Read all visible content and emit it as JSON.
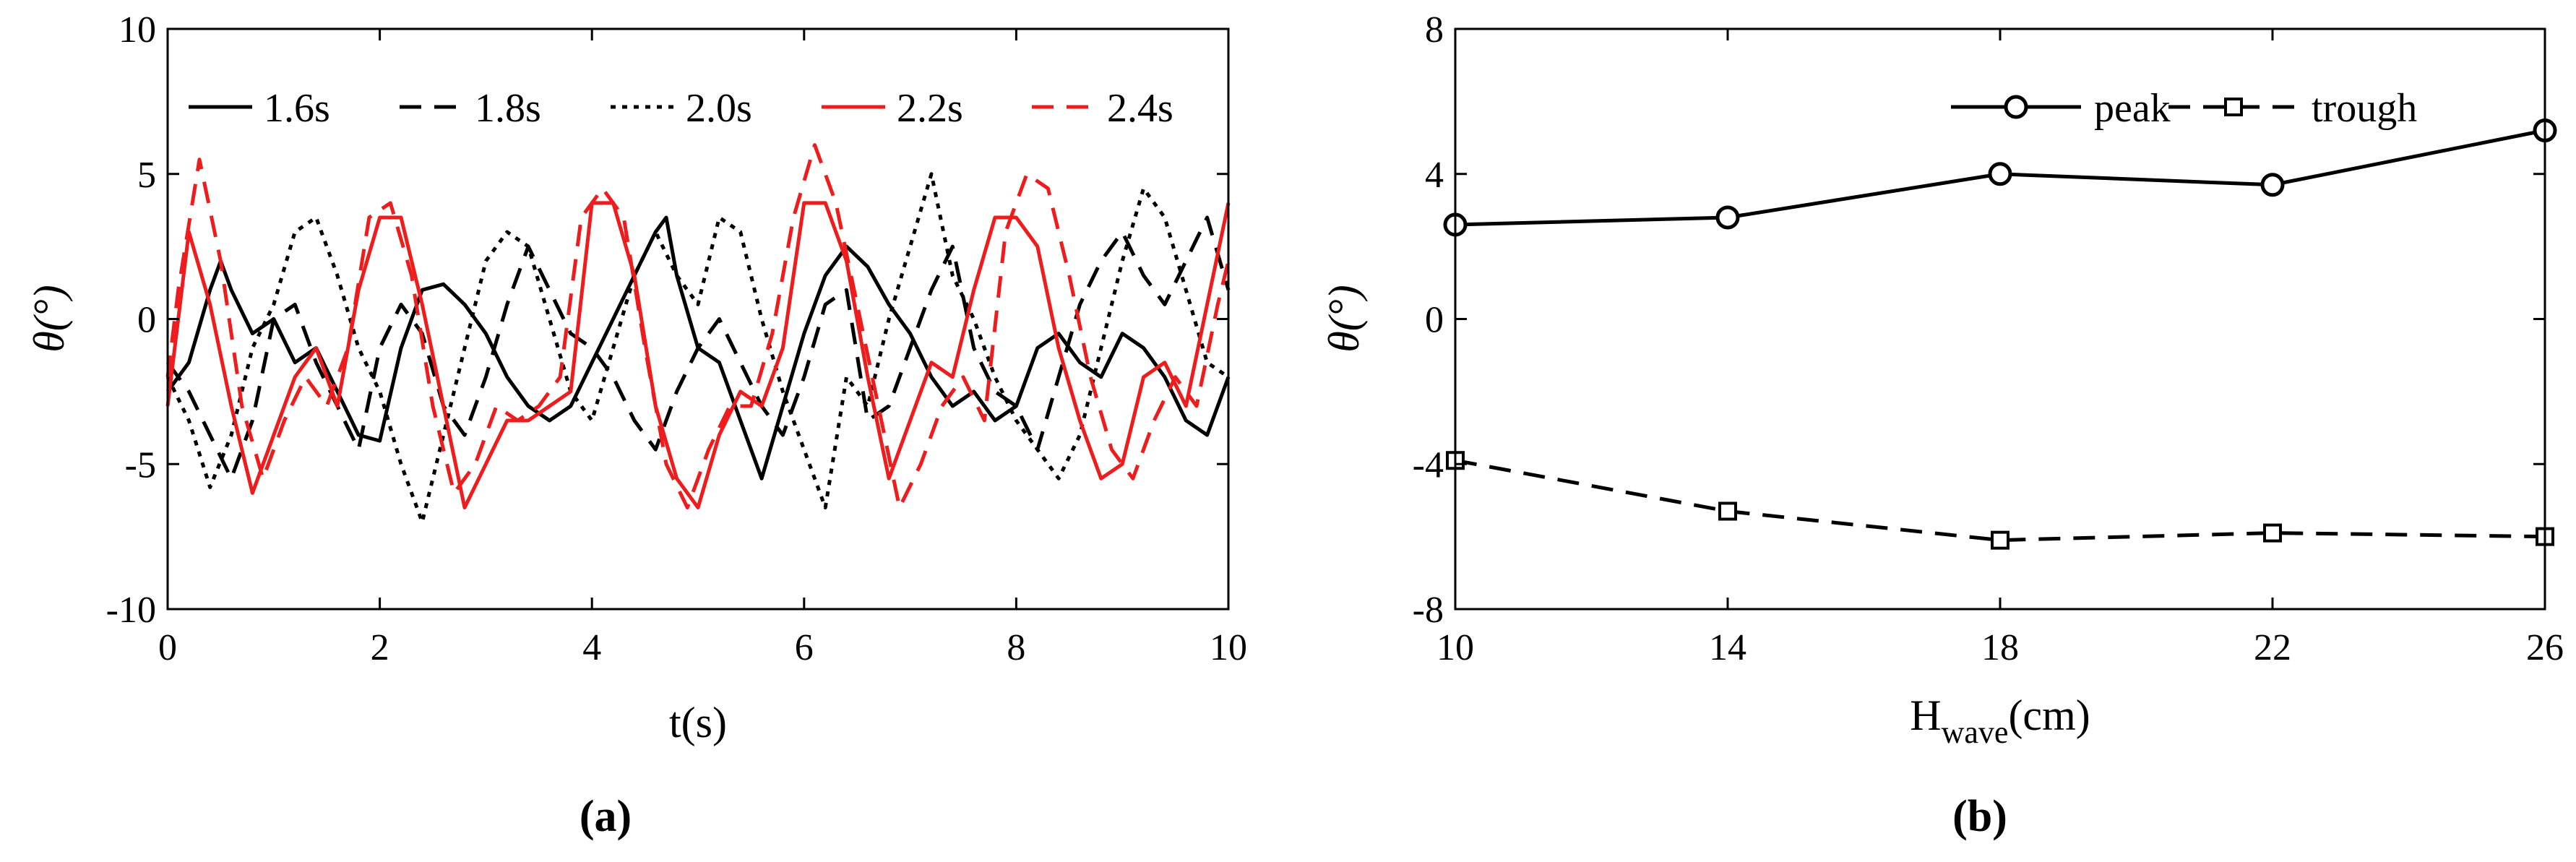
{
  "chart_data": [
    {
      "type": "line",
      "panel_label": "(a)",
      "xlabel": "t(s)",
      "ylabel": "θ(°)",
      "xlim": [
        0,
        10
      ],
      "ylim": [
        -10,
        10
      ],
      "xticks": [
        "0",
        "2",
        "4",
        "6",
        "8",
        "10"
      ],
      "yticks": [
        "-10",
        "-5",
        "0",
        "5",
        "10"
      ],
      "legend_position": "top",
      "grid": false,
      "series": [
        {
          "name": "1.6s",
          "color": "#000000",
          "dash": "solid",
          "x": [
            0,
            0.2,
            0.4,
            0.5,
            0.6,
            0.8,
            1.0,
            1.2,
            1.4,
            1.6,
            1.8,
            2.0,
            2.2,
            2.4,
            2.6,
            2.8,
            3.0,
            3.2,
            3.4,
            3.6,
            3.8,
            4.0,
            4.2,
            4.4,
            4.6,
            4.7,
            4.8,
            5.0,
            5.2,
            5.4,
            5.6,
            5.8,
            6.0,
            6.2,
            6.4,
            6.6,
            6.8,
            7.0,
            7.2,
            7.4,
            7.6,
            7.8,
            8.0,
            8.2,
            8.4,
            8.6,
            8.8,
            9.0,
            9.2,
            9.4,
            9.6,
            9.8,
            10.0
          ],
          "y": [
            -2.5,
            -1.5,
            1.0,
            2.0,
            1.0,
            -0.5,
            0.0,
            -1.5,
            -1.0,
            -2.5,
            -4.0,
            -4.2,
            -1.0,
            1.0,
            1.2,
            0.5,
            -0.5,
            -2.0,
            -3.0,
            -3.5,
            -3.0,
            -1.5,
            0.0,
            1.5,
            3.0,
            3.5,
            1.5,
            -1.0,
            -1.5,
            -3.5,
            -5.5,
            -3.0,
            -0.5,
            1.5,
            2.5,
            1.8,
            0.5,
            -0.5,
            -2.0,
            -3.0,
            -2.5,
            -3.5,
            -3.0,
            -1.0,
            -0.5,
            -1.5,
            -2.0,
            -0.5,
            -1.0,
            -2.0,
            -3.5,
            -4.0,
            -2.0
          ]
        },
        {
          "name": "1.8s",
          "color": "#000000",
          "dash": "dash",
          "x": [
            0,
            0.2,
            0.4,
            0.6,
            0.8,
            1.0,
            1.2,
            1.4,
            1.6,
            1.8,
            2.0,
            2.2,
            2.4,
            2.6,
            2.8,
            3.0,
            3.2,
            3.4,
            3.6,
            3.8,
            4.0,
            4.2,
            4.4,
            4.6,
            4.8,
            5.0,
            5.2,
            5.4,
            5.6,
            5.8,
            6.0,
            6.2,
            6.4,
            6.6,
            6.8,
            7.0,
            7.2,
            7.4,
            7.6,
            7.8,
            8.0,
            8.2,
            8.4,
            8.6,
            8.8,
            9.0,
            9.2,
            9.4,
            9.6,
            9.8,
            10.0
          ],
          "y": [
            -1.5,
            -2.5,
            -4.0,
            -5.5,
            -3.5,
            0.0,
            0.5,
            -1.5,
            -3.0,
            -4.5,
            -1.0,
            0.5,
            -0.5,
            -3.0,
            -4.0,
            -2.0,
            0.5,
            2.5,
            1.0,
            -0.5,
            -1.0,
            -2.0,
            -3.5,
            -4.5,
            -2.5,
            -1.0,
            0.0,
            -1.5,
            -3.0,
            -4.0,
            -2.0,
            0.5,
            1.0,
            -3.5,
            -3.0,
            -1.0,
            1.0,
            2.5,
            -1.0,
            -2.5,
            -3.0,
            -4.5,
            -2.0,
            0.5,
            2.0,
            3.0,
            1.5,
            0.5,
            2.0,
            3.5,
            1.0
          ]
        },
        {
          "name": "2.0s",
          "color": "#000000",
          "dash": "dot",
          "x": [
            0,
            0.2,
            0.4,
            0.6,
            0.8,
            1.0,
            1.2,
            1.4,
            1.6,
            1.8,
            2.0,
            2.2,
            2.4,
            2.6,
            2.8,
            3.0,
            3.2,
            3.4,
            3.6,
            3.8,
            4.0,
            4.2,
            4.4,
            4.6,
            4.8,
            5.0,
            5.2,
            5.4,
            5.6,
            5.8,
            6.0,
            6.2,
            6.4,
            6.6,
            6.8,
            7.0,
            7.2,
            7.4,
            7.6,
            7.8,
            8.0,
            8.2,
            8.4,
            8.6,
            8.8,
            9.0,
            9.2,
            9.4,
            9.6,
            9.8,
            10.0
          ],
          "y": [
            -2.0,
            -3.5,
            -5.8,
            -4.0,
            -1.0,
            0.5,
            3.0,
            3.5,
            1.5,
            -1.0,
            -2.5,
            -5.0,
            -7.0,
            -4.0,
            -1.0,
            2.0,
            3.0,
            2.5,
            0.0,
            -2.5,
            -3.5,
            -1.0,
            1.5,
            3.0,
            1.5,
            0.5,
            3.5,
            3.0,
            0.0,
            -2.5,
            -4.5,
            -6.5,
            -2.0,
            -3.0,
            0.0,
            2.5,
            5.0,
            1.5,
            0.0,
            -2.0,
            -3.5,
            -4.5,
            -5.5,
            -4.0,
            -1.0,
            2.0,
            4.5,
            3.5,
            1.0,
            -1.5,
            -2.0
          ]
        },
        {
          "name": "2.2s",
          "color": "#ee1c1c",
          "dash": "solid",
          "x": [
            0,
            0.2,
            0.4,
            0.6,
            0.8,
            1.0,
            1.2,
            1.4,
            1.6,
            1.8,
            2.0,
            2.2,
            2.4,
            2.6,
            2.8,
            3.0,
            3.2,
            3.4,
            3.6,
            3.8,
            4.0,
            4.2,
            4.4,
            4.6,
            4.8,
            5.0,
            5.2,
            5.4,
            5.6,
            5.8,
            6.0,
            6.2,
            6.4,
            6.6,
            6.8,
            7.0,
            7.2,
            7.4,
            7.6,
            7.8,
            8.0,
            8.2,
            8.4,
            8.6,
            8.8,
            9.0,
            9.2,
            9.4,
            9.6,
            9.8,
            10.0
          ],
          "y": [
            -3.0,
            3.0,
            0.5,
            -3.0,
            -6.0,
            -4.0,
            -2.0,
            -1.0,
            -3.0,
            1.0,
            3.5,
            3.5,
            0.5,
            -3.0,
            -6.5,
            -5.0,
            -3.5,
            -3.5,
            -3.0,
            -2.5,
            4.0,
            4.0,
            1.5,
            -3.0,
            -5.5,
            -6.5,
            -4.0,
            -2.5,
            -3.0,
            -1.0,
            4.0,
            4.0,
            2.0,
            -2.0,
            -5.5,
            -3.5,
            -1.5,
            -2.0,
            1.0,
            3.5,
            3.5,
            2.5,
            -1.0,
            -3.5,
            -5.5,
            -5.0,
            -2.0,
            -1.5,
            -3.0,
            0.5,
            4.0
          ]
        },
        {
          "name": "2.4s",
          "color": "#ee1c1c",
          "dash": "dash",
          "x": [
            0,
            0.1,
            0.3,
            0.5,
            0.7,
            0.9,
            1.1,
            1.3,
            1.5,
            1.7,
            1.9,
            2.1,
            2.3,
            2.5,
            2.7,
            2.9,
            3.1,
            3.3,
            3.5,
            3.7,
            3.9,
            4.1,
            4.3,
            4.5,
            4.7,
            4.9,
            5.1,
            5.3,
            5.5,
            5.7,
            5.9,
            6.1,
            6.3,
            6.5,
            6.7,
            6.9,
            7.1,
            7.3,
            7.5,
            7.7,
            7.9,
            8.1,
            8.3,
            8.5,
            8.7,
            8.9,
            9.1,
            9.3,
            9.5,
            9.7,
            9.9,
            10.0
          ],
          "y": [
            -2.0,
            1.0,
            5.5,
            2.0,
            -3.0,
            -5.5,
            -3.5,
            -2.0,
            -3.0,
            -1.0,
            3.5,
            4.0,
            1.5,
            -3.0,
            -6.0,
            -5.0,
            -3.0,
            -3.5,
            -3.0,
            -2.0,
            3.5,
            4.5,
            3.5,
            -1.0,
            -5.0,
            -6.5,
            -4.5,
            -3.0,
            -3.0,
            -0.5,
            3.5,
            6.0,
            4.0,
            0.5,
            -3.0,
            -6.5,
            -5.0,
            -3.0,
            -2.0,
            -3.5,
            3.0,
            5.0,
            4.5,
            1.5,
            -2.0,
            -4.5,
            -5.5,
            -3.5,
            -2.0,
            -3.0,
            0.5,
            2.0
          ]
        }
      ]
    },
    {
      "type": "line",
      "panel_label": "(b)",
      "xlabel_main": "H",
      "xlabel_sub": "wave",
      "xlabel_unit": "(cm)",
      "ylabel": "θ(°)",
      "xlim": [
        10,
        26
      ],
      "ylim": [
        -8,
        8
      ],
      "xticks": [
        "10",
        "14",
        "18",
        "22",
        "26"
      ],
      "yticks": [
        "-8",
        "-4",
        "0",
        "4",
        "8"
      ],
      "legend_position": "top-right",
      "grid": false,
      "x": [
        10,
        14,
        18,
        22,
        26
      ],
      "series": [
        {
          "name": "peak",
          "marker": "circle",
          "dash": "solid",
          "color": "#000000",
          "values": [
            2.6,
            2.8,
            4.0,
            3.7,
            5.2
          ]
        },
        {
          "name": "trough",
          "marker": "square",
          "dash": "dash",
          "color": "#000000",
          "values": [
            -3.9,
            -5.3,
            -6.1,
            -5.9,
            -6.0
          ]
        }
      ]
    }
  ]
}
